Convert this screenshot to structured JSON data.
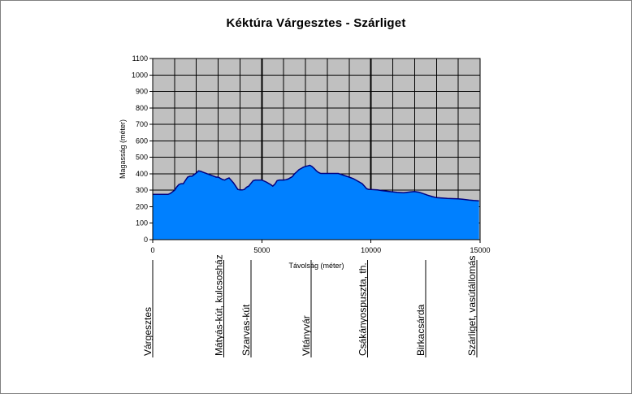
{
  "chart_data": {
    "type": "area",
    "title": "Kéktúra Várgesztes - Szárliget",
    "xlabel": "Távolság (méter)",
    "ylabel": "Magasság (méter)",
    "xlim": [
      0,
      15000
    ],
    "ylim": [
      0,
      1100
    ],
    "x_ticks": [
      0,
      5000,
      10000,
      15000
    ],
    "y_ticks": [
      0,
      100,
      200,
      300,
      400,
      500,
      600,
      700,
      800,
      900,
      1000,
      1100
    ],
    "x_grid_step": 1000,
    "grid": true,
    "colors": {
      "plot_background": "#c0c0c0",
      "fill": "#0080ff",
      "line": "#000080",
      "grid": "#000000"
    },
    "series": [
      {
        "x": [
          0,
          700,
          800,
          900,
          1000,
          1100,
          1200,
          1300,
          1400,
          1500,
          1600,
          1700,
          1800,
          1900,
          2000,
          2100,
          2200,
          2300,
          2400,
          2500,
          2600,
          2700,
          2800,
          2900,
          3000,
          3200,
          3300,
          3400,
          3500,
          3600,
          3700,
          3800,
          3900,
          4000,
          4100,
          4200,
          4300,
          4400,
          4500,
          4600,
          4700,
          4800,
          4900,
          5000,
          5200,
          5400,
          5500,
          5600,
          5700,
          5800,
          5900,
          6000,
          6100,
          6200,
          6400,
          6500,
          6600,
          6700,
          6800,
          6900,
          7000,
          7100,
          7200,
          7300,
          7400,
          7500,
          7600,
          7700,
          7800,
          7900,
          8000,
          8100,
          8200,
          8500,
          9000,
          9200,
          9400,
          9600,
          9700,
          9800,
          9900,
          10000,
          10300,
          10500,
          10800,
          11200,
          11500,
          11800,
          12000,
          12100,
          12200,
          12500,
          12600,
          12800,
          13000,
          13500,
          14000,
          14200,
          14500,
          14700,
          14950
        ],
        "values": [
          275,
          275,
          280,
          290,
          300,
          320,
          335,
          340,
          340,
          360,
          380,
          385,
          385,
          395,
          405,
          418,
          415,
          410,
          405,
          400,
          395,
          390,
          385,
          380,
          380,
          365,
          362,
          370,
          375,
          360,
          345,
          325,
          305,
          302,
          302,
          305,
          318,
          325,
          342,
          358,
          362,
          362,
          362,
          362,
          350,
          335,
          325,
          338,
          358,
          362,
          362,
          362,
          364,
          368,
          383,
          400,
          412,
          425,
          432,
          440,
          445,
          448,
          452,
          444,
          432,
          418,
          408,
          402,
          402,
          402,
          402,
          402,
          402,
          402,
          380,
          370,
          355,
          340,
          325,
          310,
          305,
          305,
          302,
          298,
          293,
          287,
          285,
          290,
          292,
          290,
          288,
          275,
          270,
          262,
          255,
          250,
          248,
          245,
          240,
          238,
          236
        ]
      }
    ]
  },
  "places": [
    {
      "name": "Várgesztes",
      "x": 0
    },
    {
      "name": "Mátyás-kút, kulcsosház",
      "x": 3250
    },
    {
      "name": "Szarvas-kút",
      "x": 4500
    },
    {
      "name": "Vitányvár",
      "x": 7250
    },
    {
      "name": "Csákányospuszta, th.",
      "x": 9850
    },
    {
      "name": "Birkacsárda",
      "x": 12500
    },
    {
      "name": "Szárliget, vasútállomás",
      "x": 14850
    }
  ]
}
